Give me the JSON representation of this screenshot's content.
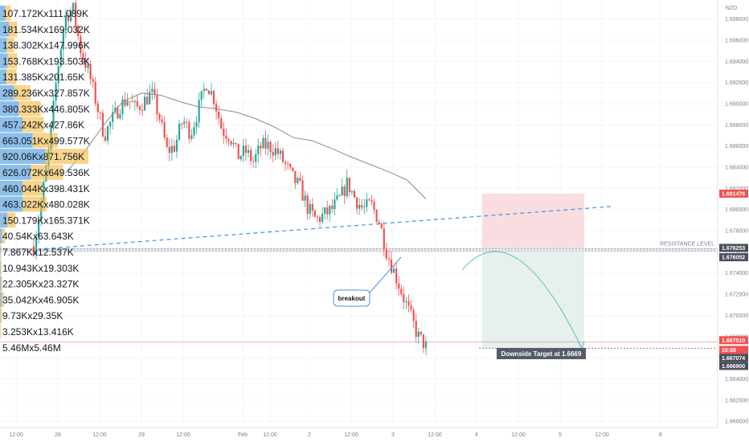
{
  "currency": "NZD",
  "colors": {
    "up": "#26a69a",
    "down": "#ef5350",
    "vp_buy": "#2f8bd6",
    "vp_sell": "#f5b83d",
    "trend": "#4a90e2",
    "resistance": "#e94b6e",
    "ma": "#8c8c8c",
    "stop_zone": "#f8d7da",
    "target_zone": "#e3f0ec",
    "arc": "#5fbfb0",
    "price_red": "#ef5350",
    "price_dark": "#4a4f5c"
  },
  "chart_data": {
    "type": "candlestick",
    "ylim": [
      1.6594,
      1.6998
    ],
    "y_ticks": [
      "1.698000",
      "1.696000",
      "1.694000",
      "1.692000",
      "1.690000",
      "1.688000",
      "1.686000",
      "1.684000",
      "1.682000",
      "1.680000",
      "1.678000",
      "1.676000",
      "1.674000",
      "1.672000",
      "1.670000",
      "1.668000",
      "1.666000",
      "1.664000",
      "1.662000",
      "1.660000"
    ],
    "x_ticks": [
      "12:00",
      "28",
      "12:00",
      "29",
      "12:00",
      "Feb",
      "12:00",
      "2",
      "12:00",
      "3",
      "12:00",
      "4",
      "12:00",
      "5",
      "12:00",
      "8"
    ],
    "price_path": [
      1.6765,
      1.6808,
      1.686,
      1.693,
      1.6982,
      1.699,
      1.695,
      1.693,
      1.69,
      1.687,
      1.6885,
      1.6898,
      1.6905,
      1.6895,
      1.6902,
      1.691,
      1.6888,
      1.6855,
      1.686,
      1.6885,
      1.6872,
      1.6895,
      1.692,
      1.6905,
      1.6875,
      1.687,
      1.685,
      1.6855,
      1.6845,
      1.686,
      1.686,
      1.6855,
      1.6843,
      1.683,
      1.682,
      1.68,
      1.679,
      1.6795,
      1.68,
      1.681,
      1.6825,
      1.681,
      1.68,
      1.6805,
      1.679,
      1.676,
      1.674,
      1.672,
      1.67,
      1.668,
      1.6671
    ],
    "ma_path": [
      1.6835,
      1.6855,
      1.688,
      1.6902,
      1.691,
      1.6908,
      1.6902,
      1.6897,
      1.6895,
      1.6892,
      1.6886,
      1.6878,
      1.6868,
      1.6865,
      1.6858,
      1.685,
      1.6843,
      1.6836,
      1.6828,
      1.681
    ],
    "volume_profile": [
      {
        "label": "107.172Kx111.089K",
        "buy": 107.172,
        "sell": 111.089
      },
      {
        "label": "181.534Kx169.032K",
        "buy": 181.534,
        "sell": 169.032
      },
      {
        "label": "138.302Kx147.996K",
        "buy": 138.302,
        "sell": 147.996
      },
      {
        "label": "153.768Kx193.503K",
        "buy": 153.768,
        "sell": 193.503
      },
      {
        "label": "131.385Kx201.65K",
        "buy": 131.385,
        "sell": 201.65
      },
      {
        "label": "289.236Kx327.857K",
        "buy": 289.236,
        "sell": 327.857
      },
      {
        "label": "380.333Kx446.805K",
        "buy": 380.333,
        "sell": 446.805
      },
      {
        "label": "457.242Kx427.86K",
        "buy": 457.242,
        "sell": 427.86
      },
      {
        "label": "663.051Kx499.577K",
        "buy": 663.051,
        "sell": 499.577
      },
      {
        "label": "920.06Kx871.756K",
        "buy": 920.06,
        "sell": 871.756
      },
      {
        "label": "626.072Kx649.536K",
        "buy": 626.072,
        "sell": 649.536
      },
      {
        "label": "460.044Kx398.431K",
        "buy": 460.044,
        "sell": 398.431
      },
      {
        "label": "463.022Kx480.028K",
        "buy": 463.022,
        "sell": 480.028
      },
      {
        "label": "150.179Kx165.371K",
        "buy": 150.179,
        "sell": 165.371
      },
      {
        "label": "40.54Kx63.643K",
        "buy": 40.54,
        "sell": 63.643
      },
      {
        "label": "7.867Kx12.537K",
        "buy": 7.867,
        "sell": 12.537
      },
      {
        "label": "10.943Kx19.303K",
        "buy": 10.943,
        "sell": 19.303
      },
      {
        "label": "22.305Kx23.327K",
        "buy": 22.305,
        "sell": 23.327
      },
      {
        "label": "35.042Kx46.905K",
        "buy": 35.042,
        "sell": 46.905
      },
      {
        "label": "9.73Kx29.35K",
        "buy": 9.73,
        "sell": 29.35
      },
      {
        "label": "3.253Kx13.416K",
        "buy": 3.253,
        "sell": 13.416
      },
      {
        "label": "5.46Mx5.46M",
        "buy": 5460,
        "sell": 5460
      }
    ],
    "levels": {
      "stop_top": 1.6815,
      "resistance_upper": 1.6763,
      "resistance_lower": 1.6761,
      "target": 1.6669,
      "current": 1.6675
    },
    "price_labels": {
      "stop": "1.681476",
      "res_upper": "1.676253",
      "res_lower": "1.676052",
      "current": "1.667510",
      "countdown": "16:08",
      "level_a": "1.667074",
      "level_b": "1.666900"
    },
    "annotations": {
      "resistance": "RESISTANCE LEVEL",
      "breakout": "breakout",
      "target": "Downside Target at 1.6669"
    }
  }
}
